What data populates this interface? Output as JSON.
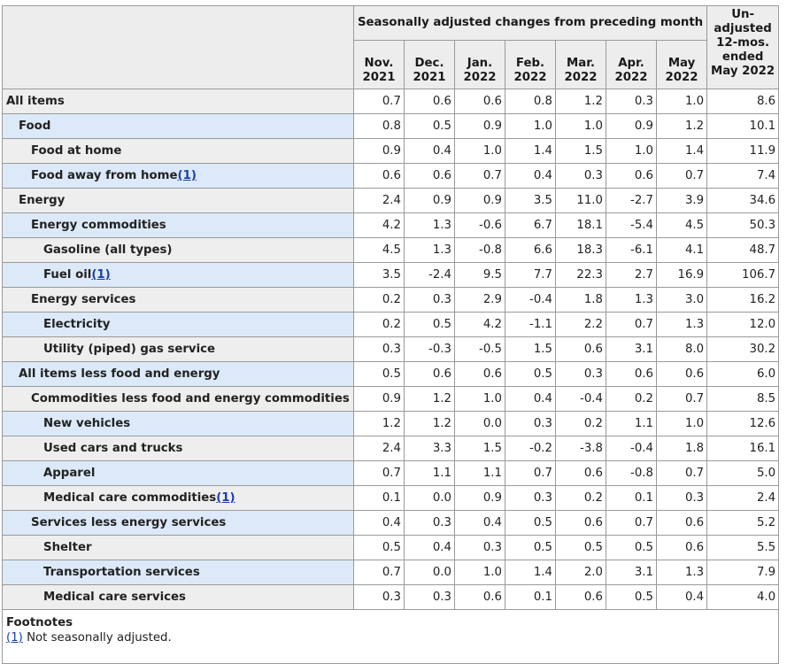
{
  "header": {
    "group_label": "Seasonally adjusted changes from preceding month",
    "months": [
      {
        "line1": "Nov.",
        "line2": "2021"
      },
      {
        "line1": "Dec.",
        "line2": "2021"
      },
      {
        "line1": "Jan.",
        "line2": "2022"
      },
      {
        "line1": "Feb.",
        "line2": "2022"
      },
      {
        "line1": "Mar.",
        "line2": "2022"
      },
      {
        "line1": "Apr.",
        "line2": "2022"
      },
      {
        "line1": "May",
        "line2": "2022"
      }
    ],
    "unadjusted_lines": [
      "Un-",
      "adjusted",
      "12-mos.",
      "ended",
      "May 2022"
    ]
  },
  "rows": [
    {
      "label": "All items",
      "indent": 0,
      "footnote": "",
      "values": [
        "0.7",
        "0.6",
        "0.6",
        "0.8",
        "1.2",
        "0.3",
        "1.0",
        "8.6"
      ]
    },
    {
      "label": "Food",
      "indent": 1,
      "footnote": "",
      "values": [
        "0.8",
        "0.5",
        "0.9",
        "1.0",
        "1.0",
        "0.9",
        "1.2",
        "10.1"
      ]
    },
    {
      "label": "Food at home",
      "indent": 2,
      "footnote": "",
      "values": [
        "0.9",
        "0.4",
        "1.0",
        "1.4",
        "1.5",
        "1.0",
        "1.4",
        "11.9"
      ]
    },
    {
      "label": "Food away from home",
      "indent": 2,
      "footnote": "(1)",
      "values": [
        "0.6",
        "0.6",
        "0.7",
        "0.4",
        "0.3",
        "0.6",
        "0.7",
        "7.4"
      ]
    },
    {
      "label": "Energy",
      "indent": 1,
      "footnote": "",
      "values": [
        "2.4",
        "0.9",
        "0.9",
        "3.5",
        "11.0",
        "-2.7",
        "3.9",
        "34.6"
      ]
    },
    {
      "label": "Energy commodities",
      "indent": 2,
      "footnote": "",
      "values": [
        "4.2",
        "1.3",
        "-0.6",
        "6.7",
        "18.1",
        "-5.4",
        "4.5",
        "50.3"
      ]
    },
    {
      "label": "Gasoline (all types)",
      "indent": 3,
      "footnote": "",
      "values": [
        "4.5",
        "1.3",
        "-0.8",
        "6.6",
        "18.3",
        "-6.1",
        "4.1",
        "48.7"
      ]
    },
    {
      "label": "Fuel oil",
      "indent": 3,
      "footnote": "(1)",
      "values": [
        "3.5",
        "-2.4",
        "9.5",
        "7.7",
        "22.3",
        "2.7",
        "16.9",
        "106.7"
      ]
    },
    {
      "label": "Energy services",
      "indent": 2,
      "footnote": "",
      "values": [
        "0.2",
        "0.3",
        "2.9",
        "-0.4",
        "1.8",
        "1.3",
        "3.0",
        "16.2"
      ]
    },
    {
      "label": "Electricity",
      "indent": 3,
      "footnote": "",
      "values": [
        "0.2",
        "0.5",
        "4.2",
        "-1.1",
        "2.2",
        "0.7",
        "1.3",
        "12.0"
      ]
    },
    {
      "label": "Utility (piped) gas service",
      "indent": 3,
      "footnote": "",
      "values": [
        "0.3",
        "-0.3",
        "-0.5",
        "1.5",
        "0.6",
        "3.1",
        "8.0",
        "30.2"
      ]
    },
    {
      "label": "All items less food and energy",
      "indent": 1,
      "footnote": "",
      "values": [
        "0.5",
        "0.6",
        "0.6",
        "0.5",
        "0.3",
        "0.6",
        "0.6",
        "6.0"
      ]
    },
    {
      "label": "Commodities less food and energy commodities",
      "indent": 2,
      "footnote": "",
      "values": [
        "0.9",
        "1.2",
        "1.0",
        "0.4",
        "-0.4",
        "0.2",
        "0.7",
        "8.5"
      ]
    },
    {
      "label": "New vehicles",
      "indent": 3,
      "footnote": "",
      "values": [
        "1.2",
        "1.2",
        "0.0",
        "0.3",
        "0.2",
        "1.1",
        "1.0",
        "12.6"
      ]
    },
    {
      "label": "Used cars and trucks",
      "indent": 3,
      "footnote": "",
      "values": [
        "2.4",
        "3.3",
        "1.5",
        "-0.2",
        "-3.8",
        "-0.4",
        "1.8",
        "16.1"
      ]
    },
    {
      "label": "Apparel",
      "indent": 3,
      "footnote": "",
      "values": [
        "0.7",
        "1.1",
        "1.1",
        "0.7",
        "0.6",
        "-0.8",
        "0.7",
        "5.0"
      ]
    },
    {
      "label": "Medical care commodities",
      "indent": 3,
      "footnote": "(1)",
      "values": [
        "0.1",
        "0.0",
        "0.9",
        "0.3",
        "0.2",
        "0.1",
        "0.3",
        "2.4"
      ]
    },
    {
      "label": "Services less energy services",
      "indent": 2,
      "footnote": "",
      "values": [
        "0.4",
        "0.3",
        "0.4",
        "0.5",
        "0.6",
        "0.7",
        "0.6",
        "5.2"
      ]
    },
    {
      "label": "Shelter",
      "indent": 3,
      "footnote": "",
      "values": [
        "0.5",
        "0.4",
        "0.3",
        "0.5",
        "0.5",
        "0.5",
        "0.6",
        "5.5"
      ]
    },
    {
      "label": "Transportation services",
      "indent": 3,
      "footnote": "",
      "values": [
        "0.7",
        "0.0",
        "1.0",
        "1.4",
        "2.0",
        "3.1",
        "1.3",
        "7.9"
      ]
    },
    {
      "label": "Medical care services",
      "indent": 3,
      "footnote": "",
      "values": [
        "0.3",
        "0.3",
        "0.6",
        "0.1",
        "0.6",
        "0.5",
        "0.4",
        "4.0"
      ]
    }
  ],
  "footnotes": {
    "title": "Footnotes",
    "items": [
      {
        "marker": "(1)",
        "text": " Not seasonally adjusted."
      }
    ]
  }
}
